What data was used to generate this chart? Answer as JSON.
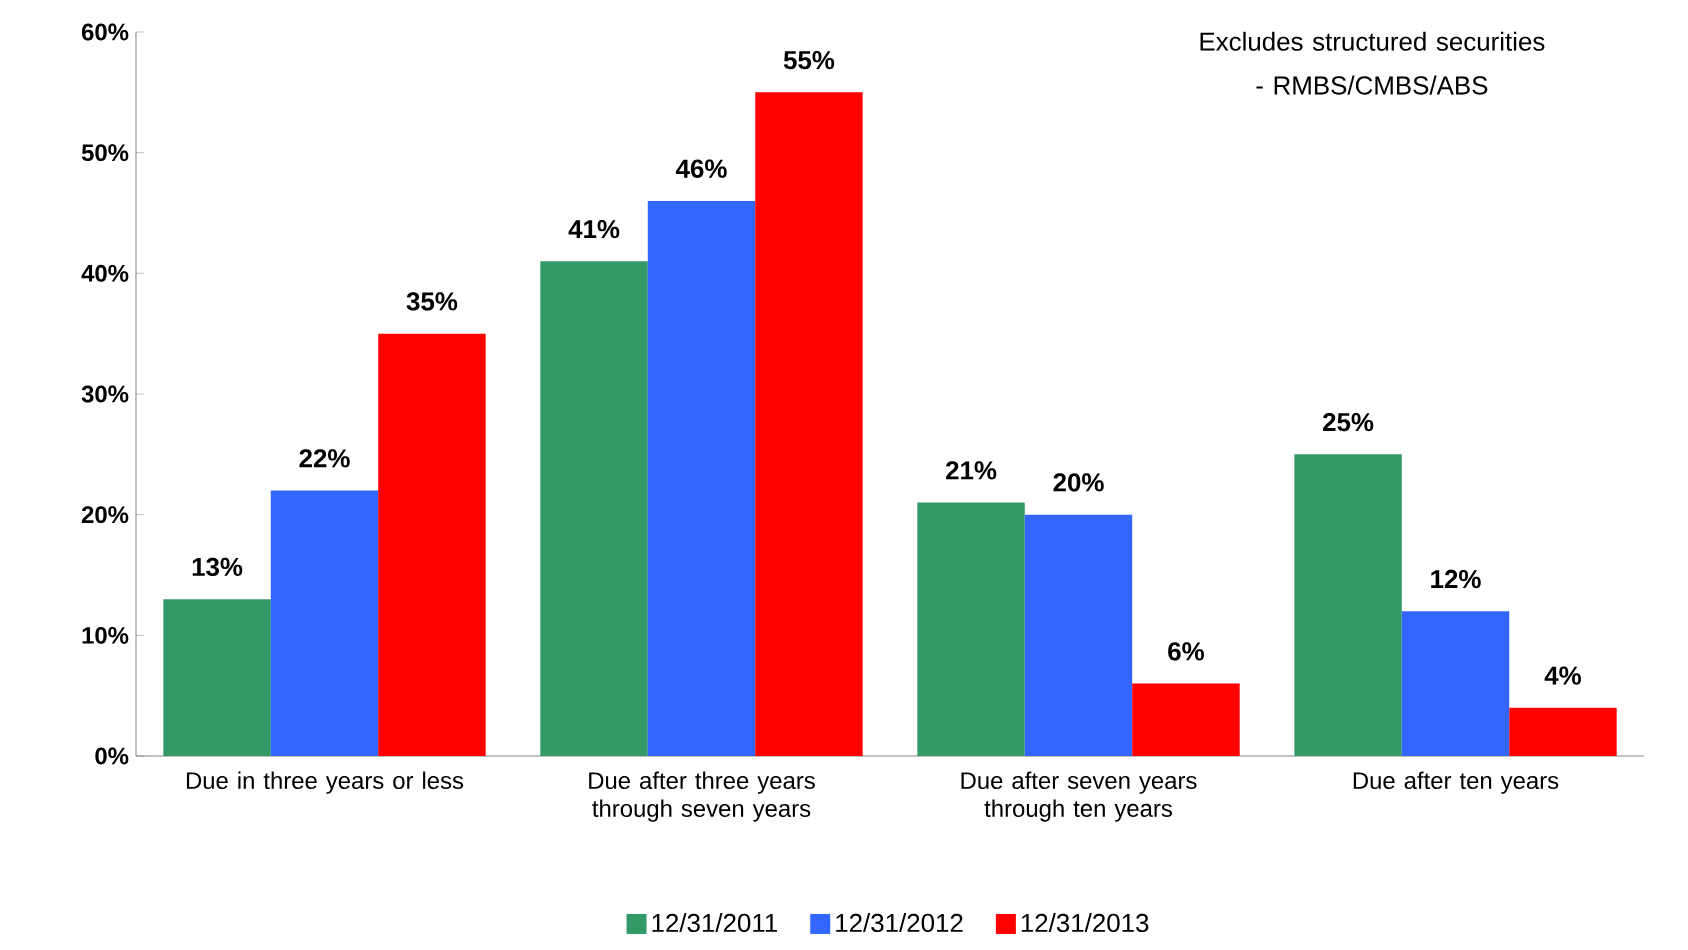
{
  "chart_data": {
    "type": "bar",
    "categories": [
      "Due in three years or less",
      "Due after three years through seven years",
      "Due after seven years through ten years",
      "Due after ten years"
    ],
    "series": [
      {
        "name": "12/31/2011",
        "color": "#339966",
        "values": [
          13,
          41,
          21,
          25
        ],
        "value_labels": [
          "13%",
          "41%",
          "21%",
          "25%"
        ]
      },
      {
        "name": "12/31/2012",
        "color": "#3366ff",
        "values": [
          22,
          46,
          20,
          12
        ],
        "value_labels": [
          "22%",
          "46%",
          "20%",
          "12%"
        ]
      },
      {
        "name": "12/31/2013",
        "color": "#ff0000",
        "values": [
          35,
          55,
          6,
          4
        ],
        "value_labels": [
          "35%",
          "55%",
          "6%",
          "4%"
        ]
      }
    ],
    "ylim": [
      0,
      60
    ],
    "yticks": [
      {
        "value": 0,
        "label": "0%"
      },
      {
        "value": 10,
        "label": "10%"
      },
      {
        "value": 20,
        "label": "20%"
      },
      {
        "value": 30,
        "label": "30%"
      },
      {
        "value": 40,
        "label": "40%"
      },
      {
        "value": 50,
        "label": "50%"
      },
      {
        "value": 60,
        "label": "60%"
      }
    ],
    "annotations": [
      "Excludes structured securities - RMBS/CMBS/ABS"
    ],
    "legend": "bottom",
    "grid": false
  }
}
